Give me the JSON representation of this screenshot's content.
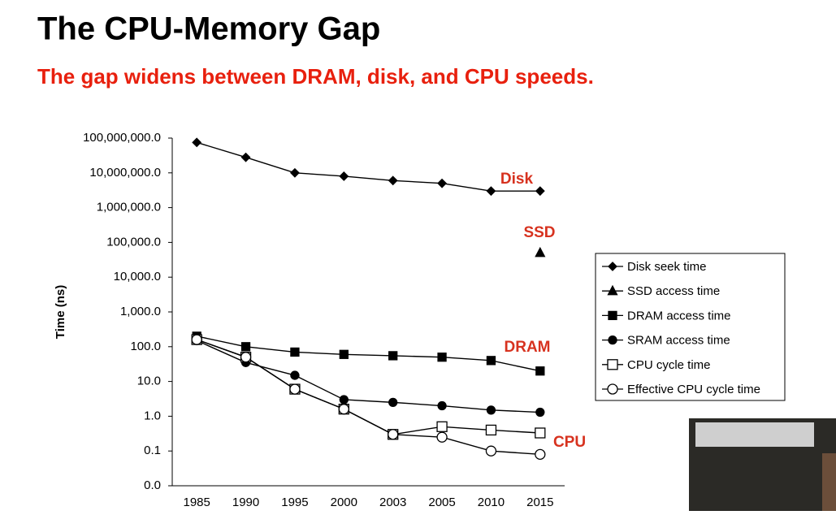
{
  "chart_data": {
    "type": "line",
    "title": "The CPU-Memory Gap",
    "subtitle": "The gap widens between DRAM, disk, and CPU speeds.",
    "y_label": "Time (ns)",
    "log_scale": true,
    "categories": [
      "1985",
      "1990",
      "1995",
      "2000",
      "2003",
      "2005",
      "2010",
      "2015"
    ],
    "ylim": [
      0.01,
      100000000
    ],
    "yticks": [
      {
        "value": 0.01,
        "label": "0.0"
      },
      {
        "value": 0.1,
        "label": "0.1"
      },
      {
        "value": 1,
        "label": "1.0"
      },
      {
        "value": 10,
        "label": "10.0"
      },
      {
        "value": 100,
        "label": "100.0"
      },
      {
        "value": 1000,
        "label": "1,000.0"
      },
      {
        "value": 10000,
        "label": "10,000.0"
      },
      {
        "value": 100000,
        "label": "100,000.0"
      },
      {
        "value": 1000000,
        "label": "1,000,000.0"
      },
      {
        "value": 10000000,
        "label": "10,000,000.0"
      },
      {
        "value": 100000000,
        "label": "100,000,000.0"
      }
    ],
    "series": [
      {
        "name": "Disk seek time",
        "color": "#000000",
        "marker": "diamond",
        "values": [
          75000000,
          28000000,
          10000000,
          8000000,
          6000000,
          5000000,
          3000000,
          3000000
        ]
      },
      {
        "name": "SSD access time",
        "color": "#000000",
        "marker": "triangle",
        "values": [
          null,
          null,
          null,
          null,
          null,
          null,
          null,
          50000
        ]
      },
      {
        "name": "DRAM access time",
        "color": "#000000",
        "marker": "square",
        "values": [
          200,
          100,
          70,
          60,
          55,
          50,
          40,
          20
        ]
      },
      {
        "name": "SRAM access time",
        "color": "#000000",
        "marker": "circle",
        "values": [
          150,
          35,
          15,
          3,
          2.5,
          2,
          1.5,
          1.3
        ]
      },
      {
        "name": "CPU cycle time",
        "color": "#000000",
        "marker": "open-square",
        "values": [
          160,
          50,
          6,
          1.6,
          0.3,
          0.5,
          0.4,
          0.33
        ]
      },
      {
        "name": "Effective CPU cycle time",
        "color": "#000000",
        "marker": "open-circle",
        "values": [
          160,
          50,
          6,
          1.6,
          0.3,
          0.25,
          0.1,
          0.08
        ]
      }
    ],
    "annotations": [
      "Disk",
      "SSD",
      "DRAM",
      "CPU"
    ],
    "legend": "right"
  }
}
